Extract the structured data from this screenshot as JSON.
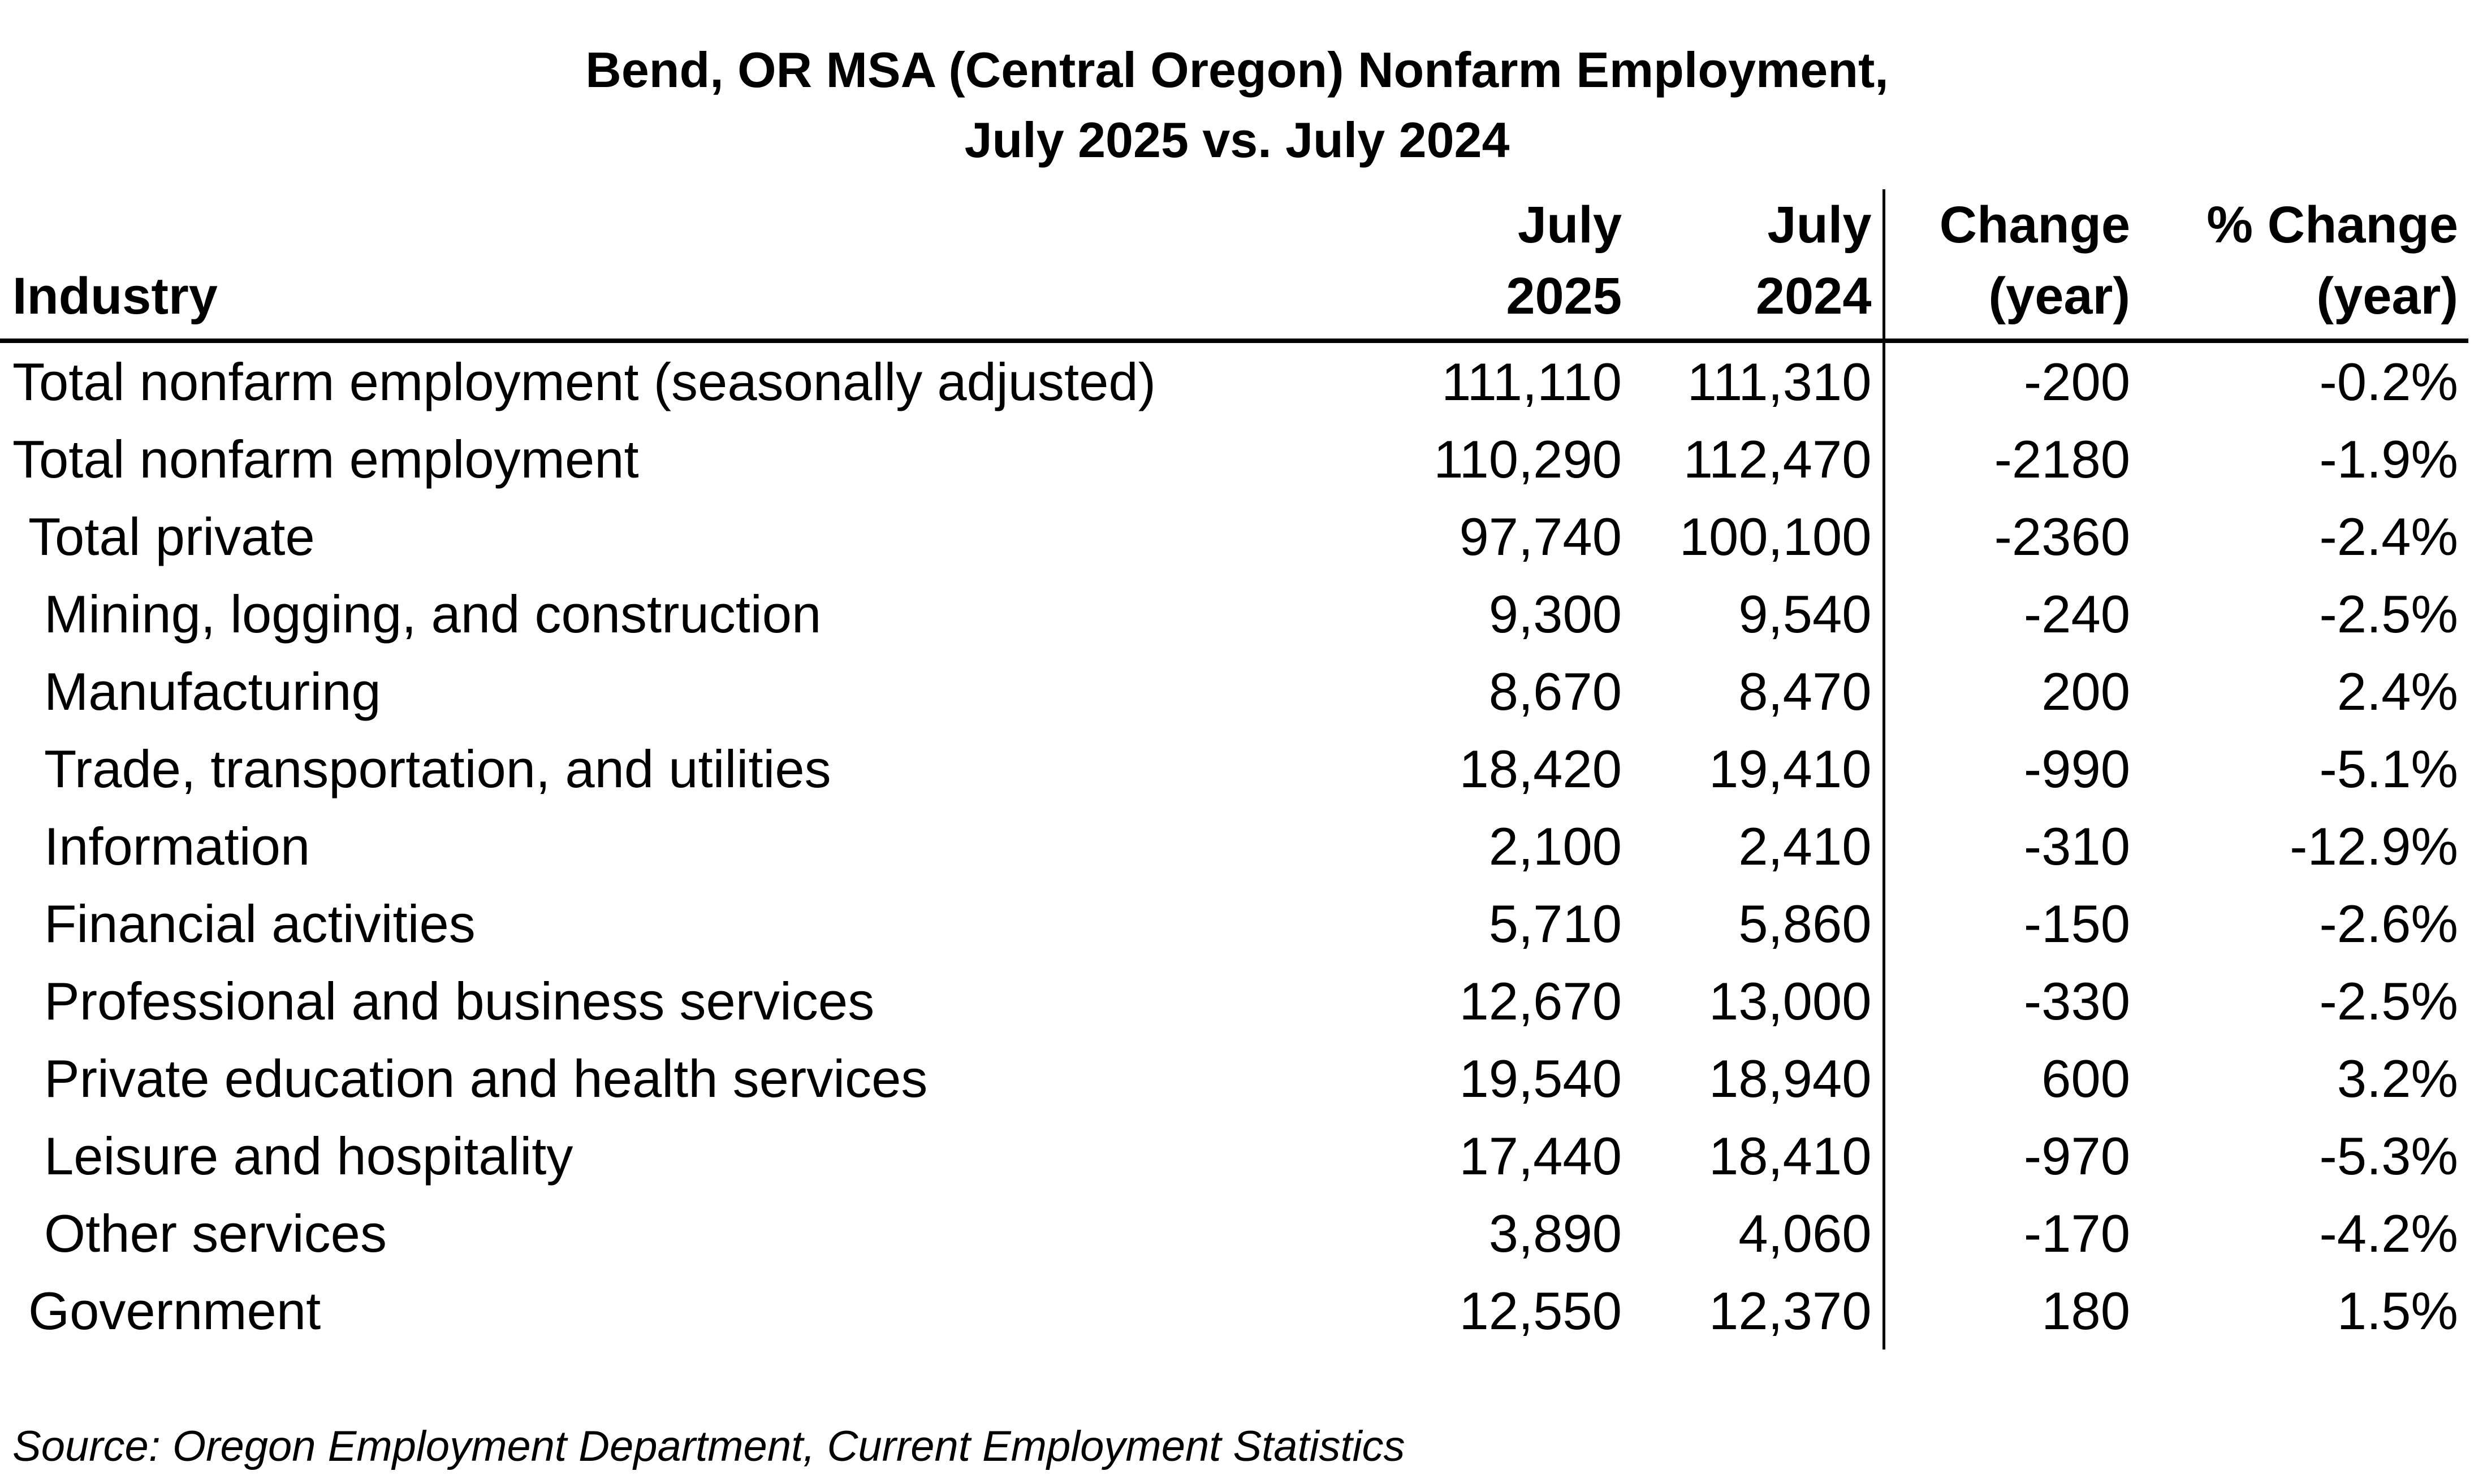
{
  "title": {
    "line1": "Bend, OR MSA (Central Oregon) Nonfarm Employment,",
    "line2": "July 2025 vs. July 2024"
  },
  "table": {
    "headers": [
      {
        "line1": "",
        "line2": "Industry"
      },
      {
        "line1": "July",
        "line2": "2025"
      },
      {
        "line1": "July",
        "line2": "2024"
      },
      {
        "line1": "Change",
        "line2": "(year)"
      },
      {
        "line1": "% Change",
        "line2": "(year)"
      }
    ],
    "rows": [
      {
        "industry": "Total nonfarm employment (seasonally adjusted)",
        "indent": 0,
        "jul2025": "111,110",
        "jul2024": "111,310",
        "change": "-200",
        "pct": "-0.2%"
      },
      {
        "industry": "Total nonfarm employment",
        "indent": 0,
        "jul2025": "110,290",
        "jul2024": "112,470",
        "change": "-2180",
        "pct": "-1.9%"
      },
      {
        "industry": "Total private",
        "indent": 1,
        "jul2025": "97,740",
        "jul2024": "100,100",
        "change": "-2360",
        "pct": "-2.4%"
      },
      {
        "industry": "Mining, logging, and construction",
        "indent": 2,
        "jul2025": "9,300",
        "jul2024": "9,540",
        "change": "-240",
        "pct": "-2.5%"
      },
      {
        "industry": "Manufacturing",
        "indent": 2,
        "jul2025": "8,670",
        "jul2024": "8,470",
        "change": "200",
        "pct": "2.4%"
      },
      {
        "industry": "Trade, transportation, and utilities",
        "indent": 2,
        "jul2025": "18,420",
        "jul2024": "19,410",
        "change": "-990",
        "pct": "-5.1%"
      },
      {
        "industry": "Information",
        "indent": 2,
        "jul2025": "2,100",
        "jul2024": "2,410",
        "change": "-310",
        "pct": "-12.9%"
      },
      {
        "industry": "Financial activities",
        "indent": 2,
        "jul2025": "5,710",
        "jul2024": "5,860",
        "change": "-150",
        "pct": "-2.6%"
      },
      {
        "industry": "Professional and business services",
        "indent": 2,
        "jul2025": "12,670",
        "jul2024": "13,000",
        "change": "-330",
        "pct": "-2.5%"
      },
      {
        "industry": "Private education and health services",
        "indent": 2,
        "jul2025": "19,540",
        "jul2024": "18,940",
        "change": "600",
        "pct": "3.2%"
      },
      {
        "industry": "Leisure and hospitality",
        "indent": 2,
        "jul2025": "17,440",
        "jul2024": "18,410",
        "change": "-970",
        "pct": "-5.3%"
      },
      {
        "industry": "Other services",
        "indent": 2,
        "jul2025": "3,890",
        "jul2024": "4,060",
        "change": "-170",
        "pct": "-4.2%"
      },
      {
        "industry": "Government",
        "indent": 1,
        "jul2025": "12,550",
        "jul2024": "12,370",
        "change": "180",
        "pct": "1.5%"
      }
    ]
  },
  "source": "Source: Oregon Employment Department, Current Employment Statistics"
}
